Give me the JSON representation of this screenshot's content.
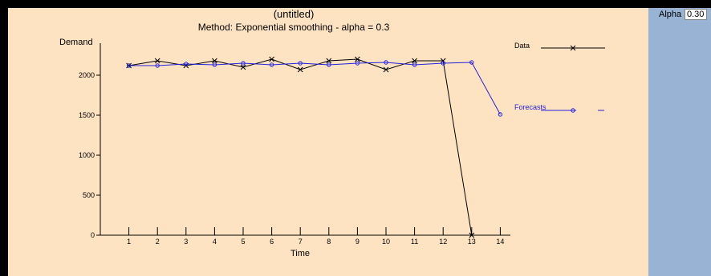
{
  "side_panel": {
    "alpha_label": "Alpha",
    "alpha_value": "0.30"
  },
  "chart_data": {
    "type": "line",
    "title": "(untitled)",
    "subtitle": "Method: Exponential smoothing - alpha = 0.3",
    "xlabel": "Time",
    "ylabel": "Demand",
    "x": [
      1,
      2,
      3,
      4,
      5,
      6,
      7,
      8,
      9,
      10,
      11,
      12,
      13,
      14
    ],
    "xlim": [
      0,
      14
    ],
    "ylim": [
      0,
      2200
    ],
    "yticks": [
      0,
      500,
      1000,
      1500,
      2000
    ],
    "xticks": [
      1,
      2,
      3,
      4,
      5,
      6,
      7,
      8,
      9,
      10,
      11,
      12,
      13,
      14
    ],
    "legend_position": "right",
    "series": [
      {
        "name": "Data",
        "marker": "x",
        "color": "#000000",
        "x": [
          1,
          2,
          3,
          4,
          5,
          6,
          7,
          8,
          9,
          10,
          11,
          12,
          13
        ],
        "values": [
          2120,
          2180,
          2120,
          2180,
          2100,
          2200,
          2070,
          2180,
          2200,
          2070,
          2180,
          2180,
          0
        ]
      },
      {
        "name": "Forecasts",
        "marker": "o",
        "color": "#2222dd",
        "x": [
          1,
          2,
          3,
          4,
          5,
          6,
          7,
          8,
          9,
          10,
          11,
          12,
          13,
          14
        ],
        "values": [
          2120,
          2120,
          2140,
          2130,
          2150,
          2130,
          2150,
          2130,
          2150,
          2160,
          2130,
          2150,
          2160,
          1510
        ]
      }
    ]
  }
}
